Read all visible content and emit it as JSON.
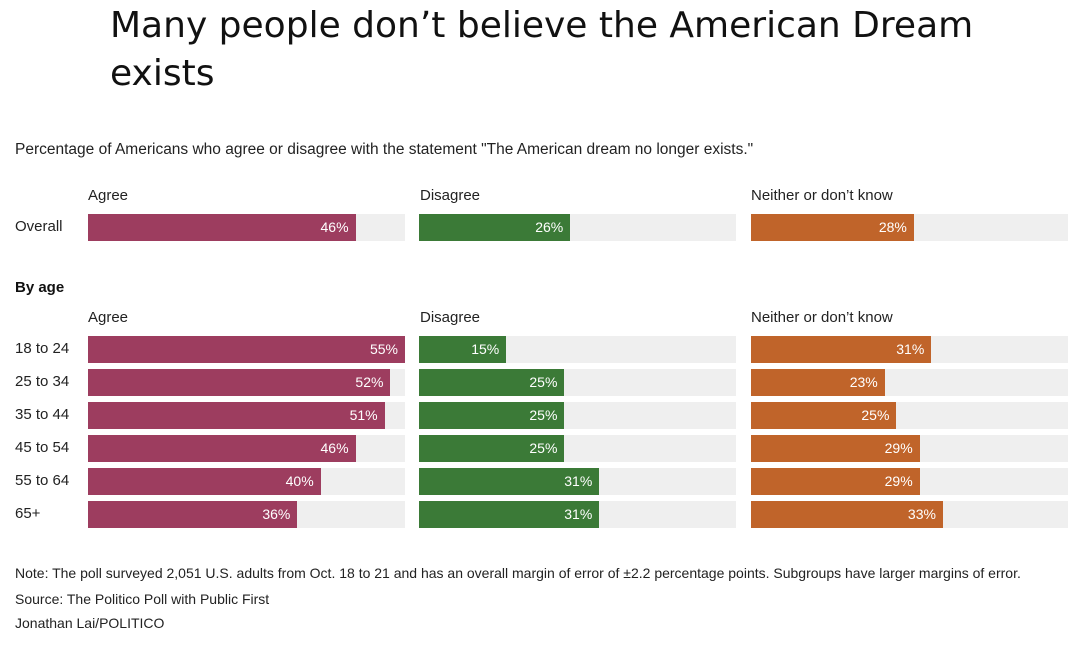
{
  "colors": {
    "agree": "#9d3d5f",
    "disagree": "#3b7a37",
    "neither": "#c0642a",
    "track": "#efefef"
  },
  "chart_data": {
    "type": "bar",
    "title": "Many people don’t believe the American Dream exists",
    "subtitle": "Percentage of Americans who agree or disagree with the statement \"The American dream no longer exists.\"",
    "orientation": "horizontal",
    "xlim": [
      0,
      100
    ],
    "columns": [
      "Agree",
      "Disagree",
      "Neither or don’t know"
    ],
    "overall": {
      "label": "Overall",
      "values": [
        46,
        26,
        28
      ]
    },
    "section_label": "By age",
    "rows": [
      {
        "label": "18 to 24",
        "values": [
          55,
          15,
          31
        ]
      },
      {
        "label": "25 to 34",
        "values": [
          52,
          25,
          23
        ]
      },
      {
        "label": "35 to 44",
        "values": [
          51,
          25,
          25
        ]
      },
      {
        "label": "45 to 54",
        "values": [
          46,
          25,
          29
        ]
      },
      {
        "label": "55 to 64",
        "values": [
          40,
          31,
          29
        ]
      },
      {
        "label": "65+",
        "values": [
          36,
          31,
          33
        ]
      }
    ],
    "value_suffix": "%"
  },
  "notes": {
    "note": "Note: The poll surveyed 2,051 U.S. adults from Oct. 18 to 21 and has an overall margin of error of ±2.2 percentage points. Subgroups have larger margins of error.",
    "source": "Source: The Politico Poll with Public First",
    "credit": "Jonathan Lai/POLITICO"
  }
}
